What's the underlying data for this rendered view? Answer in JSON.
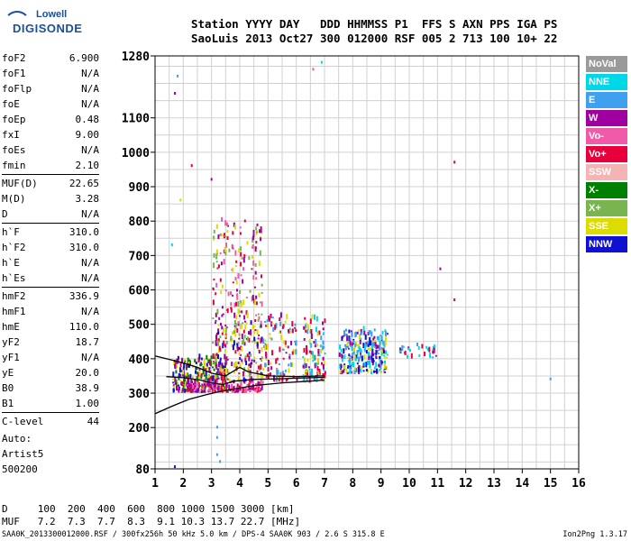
{
  "logo": {
    "line1": "Lowell",
    "line2": "DIGISONDE"
  },
  "header": {
    "line1": "Station YYYY DAY   DDD HHMMSS P1  FFS S AXN PPS IGA PS",
    "line2": "SaoLuis 2013 Oct27 300 012000 RSF 005 2 713 100 10+ 22"
  },
  "params": [
    {
      "name": "foF2",
      "value": "6.900"
    },
    {
      "name": "foF1",
      "value": "N/A"
    },
    {
      "name": "foFlp",
      "value": "N/A"
    },
    {
      "name": "foE",
      "value": "N/A"
    },
    {
      "name": "foEp",
      "value": "0.48"
    },
    {
      "name": "fxI",
      "value": "9.00"
    },
    {
      "name": "foEs",
      "value": "N/A"
    },
    {
      "name": "fmin",
      "value": "2.10"
    },
    {
      "name": "MUF(D)",
      "value": "22.65"
    },
    {
      "name": "M(D)",
      "value": "3.28"
    },
    {
      "name": "D",
      "value": "N/A"
    },
    {
      "name": "h`F",
      "value": "310.0"
    },
    {
      "name": "h`F2",
      "value": "310.0"
    },
    {
      "name": "h`E",
      "value": "N/A"
    },
    {
      "name": "h`Es",
      "value": "N/A"
    },
    {
      "name": "hmF2",
      "value": "336.9"
    },
    {
      "name": "hmF1",
      "value": "N/A"
    },
    {
      "name": "hmE",
      "value": "110.0"
    },
    {
      "name": "yF2",
      "value": "18.7"
    },
    {
      "name": "yF1",
      "value": "N/A"
    },
    {
      "name": "yE",
      "value": "20.0"
    },
    {
      "name": "B0",
      "value": "38.9"
    },
    {
      "name": "B1",
      "value": "1.00"
    },
    {
      "name": "C-level",
      "value": "44"
    }
  ],
  "auto": {
    "line1": "Auto:",
    "line2": "Artist5",
    "line3": "500200"
  },
  "propagation": {
    "row1": "D     100  200  400  600  800 1000 1500 3000 [km]",
    "row2": "MUF   7.2  7.3  7.7  8.3  9.1 10.3 13.7 22.7 [MHz]"
  },
  "footer": "SAA0K_2013300012000.RSF / 300fx256h 50 kHz 5.0 km / DPS-4 SAA0K 903 / 2.6 S 315.8 E",
  "version": "Ion2Png 1.3.17",
  "legend": [
    {
      "label": "NoVal",
      "color": "#9a9a9a"
    },
    {
      "label": "NNE",
      "color": "#00d8e8"
    },
    {
      "label": "E",
      "color": "#3fa0f0"
    },
    {
      "label": "W",
      "color": "#a000a0"
    },
    {
      "label": "Vo-",
      "color": "#f05aa8"
    },
    {
      "label": "Vo+",
      "color": "#e8003c"
    },
    {
      "label": "SSW",
      "color": "#f4b4b4"
    },
    {
      "label": "X-",
      "color": "#008000"
    },
    {
      "label": "X+",
      "color": "#78b450"
    },
    {
      "label": "SSE",
      "color": "#dcdc00"
    },
    {
      "label": "NNW",
      "color": "#1010d0"
    }
  ],
  "chart_data": {
    "type": "scatter",
    "xlim": [
      1,
      16
    ],
    "ylim": [
      80,
      1280
    ],
    "xticks": [
      1,
      2,
      3,
      4,
      5,
      6,
      7,
      8,
      9,
      10,
      11,
      12,
      13,
      14,
      15,
      16
    ],
    "yticks": [
      80,
      200,
      300,
      400,
      500,
      600,
      700,
      800,
      900,
      1000,
      1100,
      1280
    ],
    "grid": true,
    "legend_placement": "right",
    "blobs": [
      {
        "x": [
          1.6,
          3.5
        ],
        "y": [
          300,
          400
        ],
        "colors": [
          "#e8003c",
          "#a000a0",
          "#dcdc00",
          "#008000",
          "#1010d0"
        ],
        "n": 260
      },
      {
        "x": [
          2.0,
          4.8
        ],
        "y": [
          300,
          330
        ],
        "colors": [
          "#a000a0",
          "#e8003c",
          "#f05aa8"
        ],
        "n": 150
      },
      {
        "x": [
          3.0,
          4.8
        ],
        "y": [
          330,
          500
        ],
        "colors": [
          "#dcdc00",
          "#e8003c",
          "#a000a0",
          "#1010d0",
          "#78b450"
        ],
        "n": 200
      },
      {
        "x": [
          3.0,
          4.8
        ],
        "y": [
          500,
          800
        ],
        "colors": [
          "#dcdc00",
          "#e8003c",
          "#f05aa8",
          "#a000a0",
          "#78b450"
        ],
        "n": 160
      },
      {
        "x": [
          4.8,
          6.0
        ],
        "y": [
          330,
          520
        ],
        "colors": [
          "#dcdc00",
          "#e8003c",
          "#3fa0f0",
          "#a000a0"
        ],
        "n": 110
      },
      {
        "x": [
          6.2,
          7.0
        ],
        "y": [
          330,
          520
        ],
        "colors": [
          "#dcdc00",
          "#e8003c",
          "#3fa0f0",
          "#a000a0",
          "#00d8e8"
        ],
        "n": 110
      },
      {
        "x": [
          7.5,
          9.2
        ],
        "y": [
          355,
          480
        ],
        "colors": [
          "#3fa0f0",
          "#00d8e8",
          "#1010d0",
          "#dcdc00",
          "#a000a0"
        ],
        "n": 260
      },
      {
        "x": [
          9.6,
          11.0
        ],
        "y": [
          400,
          440
        ],
        "colors": [
          "#3fa0f0",
          "#00d8e8",
          "#e8003c",
          "#a000a0"
        ],
        "n": 30
      }
    ],
    "points": [
      {
        "x": 1.8,
        "y": 1220,
        "color": "#3fa0f0"
      },
      {
        "x": 1.7,
        "y": 1170,
        "color": "#a000a0"
      },
      {
        "x": 1.9,
        "y": 860,
        "color": "#dcdc00"
      },
      {
        "x": 1.6,
        "y": 730,
        "color": "#00d8e8"
      },
      {
        "x": 2.3,
        "y": 960,
        "color": "#e8003c"
      },
      {
        "x": 3.0,
        "y": 920,
        "color": "#a000a0"
      },
      {
        "x": 6.9,
        "y": 1260,
        "color": "#00d8e8"
      },
      {
        "x": 6.6,
        "y": 1240,
        "color": "#f05aa8"
      },
      {
        "x": 11.6,
        "y": 970,
        "color": "#e8003c"
      },
      {
        "x": 11.1,
        "y": 660,
        "color": "#a000a0"
      },
      {
        "x": 11.6,
        "y": 570,
        "color": "#e8003c"
      },
      {
        "x": 15.0,
        "y": 340,
        "color": "#3fa0f0"
      },
      {
        "x": 3.2,
        "y": 200,
        "color": "#3fa0f0"
      },
      {
        "x": 3.2,
        "y": 170,
        "color": "#3fa0f0"
      },
      {
        "x": 3.2,
        "y": 120,
        "color": "#3fa0f0"
      },
      {
        "x": 3.3,
        "y": 100,
        "color": "#3fa0f0"
      },
      {
        "x": 1.7,
        "y": 85,
        "color": "#1010d0"
      }
    ],
    "curves": [
      {
        "x": [
          1.0,
          1.6,
          2.2,
          2.8,
          3.3,
          3.8,
          4.5,
          5.5,
          6.5,
          7.0
        ],
        "y": [
          240,
          262,
          282,
          295,
          305,
          312,
          322,
          330,
          335,
          338
        ]
      },
      {
        "x": [
          1.0,
          1.8,
          2.5,
          3.0,
          3.5,
          3.8,
          4.0,
          4.3,
          5.0,
          6.0,
          7.0
        ],
        "y": [
          408,
          392,
          375,
          358,
          350,
          365,
          375,
          362,
          350,
          348,
          350
        ]
      },
      {
        "x": [
          1.4,
          2.0,
          2.6,
          3.0,
          3.4,
          3.8,
          4.5,
          5.5,
          6.5,
          7.0
        ],
        "y": [
          348,
          345,
          338,
          330,
          325,
          335,
          340,
          342,
          345,
          346
        ]
      }
    ]
  }
}
